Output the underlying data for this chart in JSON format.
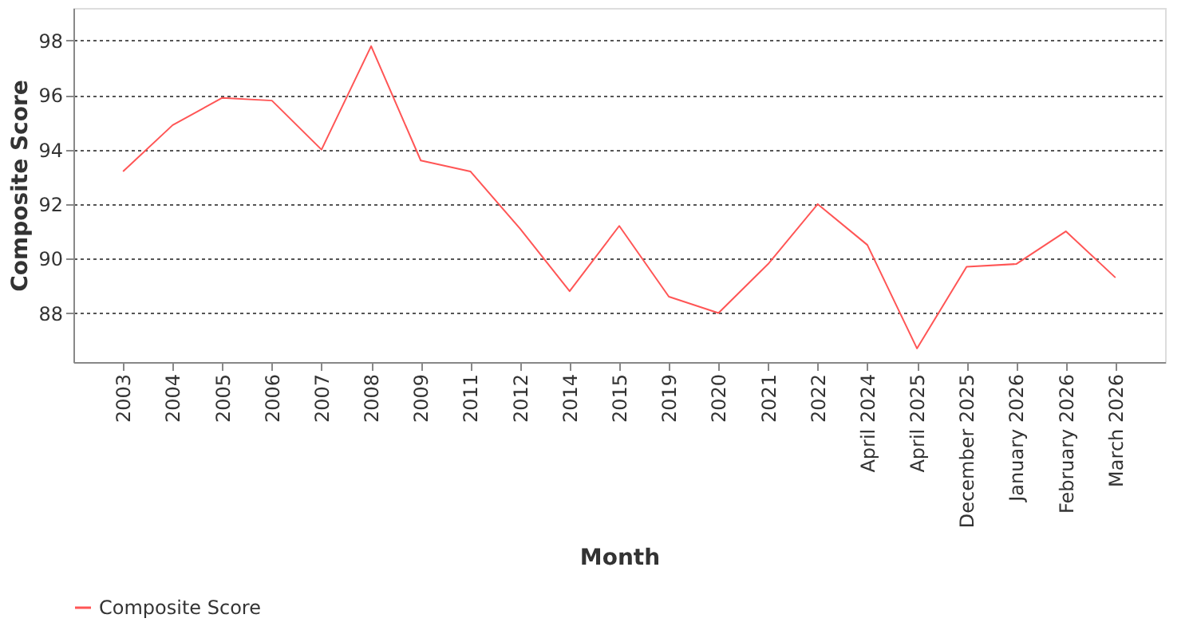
{
  "chart_data": {
    "type": "line",
    "xlabel": "Month",
    "ylabel": "Composite Score",
    "categories": [
      "2003",
      "2004",
      "2005",
      "2006",
      "2007",
      "2008",
      "2009",
      "2011",
      "2012",
      "2014",
      "2015",
      "2019",
      "2020",
      "2021",
      "2022",
      "April 2024",
      "April 2025",
      "December 2025",
      "January 2026",
      "February 2026",
      "March 2026"
    ],
    "series": [
      {
        "name": "Composite Score",
        "color": "#ff5555",
        "values": [
          93.2,
          94.9,
          95.9,
          95.8,
          94.0,
          97.8,
          93.6,
          93.2,
          91.1,
          88.8,
          91.2,
          88.6,
          88.0,
          89.8,
          92.0,
          90.5,
          86.7,
          89.7,
          89.8,
          91.0,
          89.3
        ]
      }
    ],
    "ylim": [
      86.2,
      99.2
    ],
    "yticks": [
      88,
      90,
      92,
      94,
      96,
      98
    ],
    "grid": "y",
    "legend": "bottom",
    "marker": "none",
    "line_style": "solid"
  }
}
